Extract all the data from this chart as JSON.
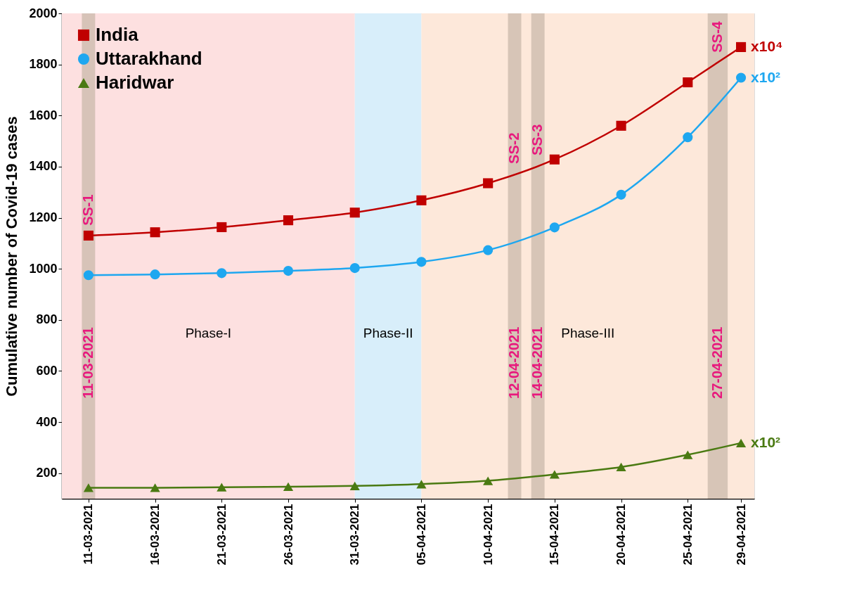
{
  "chart_data": {
    "type": "line",
    "ylabel": "Cumulative number of Covid-19 cases",
    "x": [
      "2021-03-11",
      "2021-03-16",
      "2021-03-21",
      "2021-03-26",
      "2021-03-31",
      "2021-04-05",
      "2021-04-10",
      "2021-04-15",
      "2021-04-20",
      "2021-04-25",
      "2021-04-29"
    ],
    "series": [
      {
        "name": "India",
        "color": "#c00000",
        "marker": "square",
        "values": [
          1130,
          1143,
          1163,
          1190,
          1220,
          1268,
          1335,
          1428,
          1560,
          1730,
          1868
        ]
      },
      {
        "name": "Uttarakhand",
        "color": "#1ea7f0",
        "marker": "circle",
        "values": [
          975,
          978,
          983,
          992,
          1003,
          1027,
          1073,
          1162,
          1290,
          1515,
          1748
        ]
      },
      {
        "name": "Haridwar",
        "color": "#4a7a12",
        "marker": "triangle",
        "values": [
          143,
          143,
          145,
          147,
          150,
          157,
          170,
          195,
          224,
          272,
          318
        ]
      }
    ],
    "xlim": [
      "2021-03-09",
      "2021-04-30"
    ],
    "xticks": [
      {
        "value": "2021-03-11",
        "label": "11-03-2021"
      },
      {
        "value": "2021-03-16",
        "label": "16-03-2021"
      },
      {
        "value": "2021-03-21",
        "label": "21-03-2021"
      },
      {
        "value": "2021-03-26",
        "label": "26-03-2021"
      },
      {
        "value": "2021-03-31",
        "label": "31-03-2021"
      },
      {
        "value": "2021-04-05",
        "label": "05-04-2021"
      },
      {
        "value": "2021-04-10",
        "label": "10-04-2021"
      },
      {
        "value": "2021-04-15",
        "label": "15-04-2021"
      },
      {
        "value": "2021-04-20",
        "label": "20-04-2021"
      },
      {
        "value": "2021-04-25",
        "label": "25-04-2021"
      },
      {
        "value": "2021-04-29",
        "label": "29-04-2021"
      }
    ],
    "ylim": [
      100,
      2000
    ],
    "yticks": [
      200,
      400,
      600,
      800,
      1000,
      1200,
      1400,
      1600,
      1800,
      2000
    ],
    "bands": [
      {
        "axis": "x",
        "from": "2021-03-09",
        "to": "2021-03-31",
        "label": "Phase-I",
        "color": "#fde0e0"
      },
      {
        "axis": "x",
        "from": "2021-03-31",
        "to": "2021-04-05",
        "label": "Phase-II",
        "color": "#d8eefa"
      },
      {
        "axis": "x",
        "from": "2021-04-05",
        "to": "2021-04-30",
        "label": "Phase-III",
        "color": "#fde8da"
      },
      {
        "axis": "x",
        "from": "2021-03-10T12:00",
        "to": "2021-03-11T12:00",
        "label": "SS-1",
        "color": "#c9b9ab"
      },
      {
        "axis": "x",
        "from": "2021-04-11T12:00",
        "to": "2021-04-12T12:00",
        "label": "SS-2",
        "color": "#c9b9ab"
      },
      {
        "axis": "x",
        "from": "2021-04-13T06:00",
        "to": "2021-04-14T06:00",
        "label": "SS-3",
        "color": "#c9b9ab"
      },
      {
        "axis": "x",
        "from": "2021-04-26T12:00",
        "to": "2021-04-28",
        "label": "SS-4",
        "color": "#c9b9ab"
      }
    ],
    "annotations": [
      "11-03-2021",
      "12-04-2021",
      "14-04-2021",
      "27-04-2021",
      {
        "text": "x10⁴",
        "x": "2021-04-29",
        "y": 1868
      },
      {
        "text": "x10²",
        "x": "2021-04-29",
        "y": 1748
      },
      {
        "text": "x10²",
        "x": "2021-04-29",
        "y": 318
      }
    ],
    "legend": "top left",
    "grid": false,
    "line_style": "solid"
  }
}
